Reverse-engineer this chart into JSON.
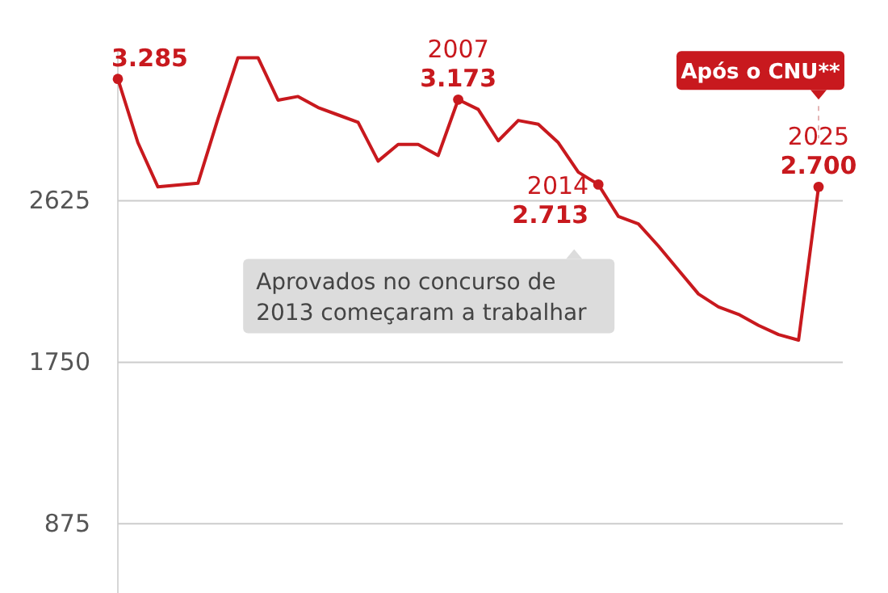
{
  "chart_data": {
    "type": "line",
    "categories": [
      null,
      null,
      null,
      null,
      null,
      null,
      null,
      null,
      null,
      null,
      null,
      null,
      null,
      null,
      null,
      null,
      null,
      null,
      null,
      null,
      null,
      null,
      null,
      null,
      null,
      null,
      null,
      null,
      null,
      null,
      null,
      null,
      null,
      null,
      null,
      null
    ],
    "series": [
      {
        "color": "#c8191e",
        "values": [
          3285,
          2940,
          2700,
          2710,
          2720,
          3070,
          3400,
          3400,
          3170,
          3190,
          3130,
          3090,
          3050,
          2840,
          2930,
          2930,
          2870,
          3173,
          3120,
          2950,
          3060,
          3040,
          2940,
          2780,
          2713,
          2540,
          2500,
          2380,
          2250,
          2120,
          2050,
          2010,
          1950,
          1900,
          1870,
          2700
        ],
        "value_labels": [
          "3.285",
          null,
          null,
          null,
          null,
          null,
          null,
          null,
          null,
          null,
          null,
          null,
          null,
          null,
          null,
          null,
          null,
          "3.173",
          null,
          null,
          null,
          null,
          null,
          null,
          "2.713",
          null,
          null,
          null,
          null,
          null,
          null,
          null,
          null,
          null,
          null,
          "2.700"
        ]
      }
    ],
    "ylim": [
      500,
      3450
    ],
    "yticks": [
      875,
      1750,
      2625
    ],
    "tick_labels": "y",
    "grid": "y",
    "line_style": "solid",
    "annotations": [
      "2007",
      "2014",
      "2025",
      "Aprovados no concurso de 2013 começaram a trabalhar",
      "Após o CNU**"
    ]
  }
}
